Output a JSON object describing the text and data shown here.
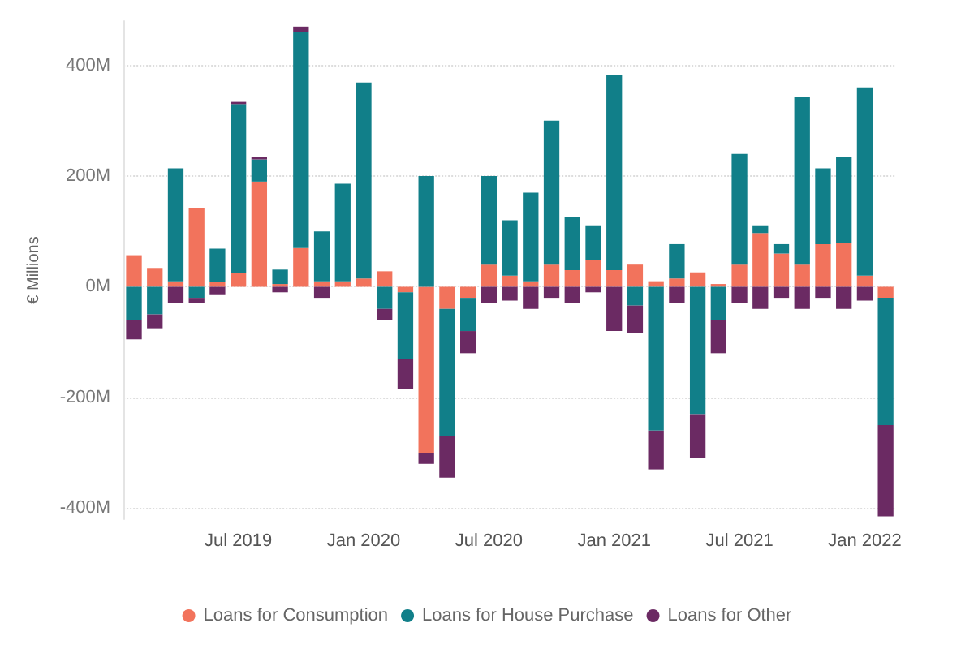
{
  "chart_data": {
    "type": "bar",
    "stacked": true,
    "ylabel": "€ Millions",
    "categories": [
      null,
      null,
      null,
      null,
      null,
      "Jul 2019",
      null,
      null,
      null,
      null,
      null,
      "Jan 2020",
      null,
      null,
      null,
      null,
      null,
      "Jul 2020",
      null,
      null,
      null,
      null,
      null,
      "Jan 2021",
      null,
      null,
      null,
      null,
      null,
      "Jul 2021",
      null,
      null,
      null,
      null,
      null,
      "Jan 2022",
      null
    ],
    "series": [
      {
        "name": "Loans for Consumption",
        "color": "#f2735c",
        "values": [
          57,
          34,
          10,
          143,
          8,
          25,
          190,
          5,
          70,
          10,
          10,
          15,
          28,
          -10,
          -300,
          -40,
          -20,
          40,
          20,
          10,
          40,
          30,
          49,
          30,
          40,
          10,
          15,
          26,
          5,
          40,
          97,
          60,
          40,
          77,
          80,
          20,
          -20
        ]
      },
      {
        "name": "Loans for House Purchase",
        "color": "#117f89",
        "values": [
          -60,
          -50,
          204,
          -20,
          61,
          305,
          40,
          26,
          390,
          90,
          176,
          354,
          -40,
          -120,
          200,
          -230,
          -60,
          160,
          100,
          160,
          260,
          96,
          62,
          353,
          -34,
          -260,
          62,
          -230,
          -60,
          200,
          14,
          17,
          303,
          137,
          154,
          340,
          -230
        ]
      },
      {
        "name": "Loans for Other",
        "color": "#6b2a63",
        "values": [
          -35,
          -25,
          -30,
          -10,
          -15,
          4,
          4,
          -10,
          10,
          -20,
          0,
          0,
          -20,
          -55,
          -20,
          -75,
          -40,
          -30,
          -25,
          -40,
          -20,
          -30,
          -10,
          -80,
          -50,
          -70,
          -30,
          -80,
          -60,
          -30,
          -40,
          -20,
          -40,
          -20,
          -40,
          -25,
          -165
        ]
      }
    ],
    "ylim": [
      -420,
      480
    ],
    "yticks": [
      {
        "value": -400,
        "label": "-400M"
      },
      {
        "value": -200,
        "label": "-200M"
      },
      {
        "value": 0,
        "label": "0M"
      },
      {
        "value": 200,
        "label": "200M"
      },
      {
        "value": 400,
        "label": "400M"
      }
    ],
    "grid": "y",
    "legend": "bottom"
  }
}
